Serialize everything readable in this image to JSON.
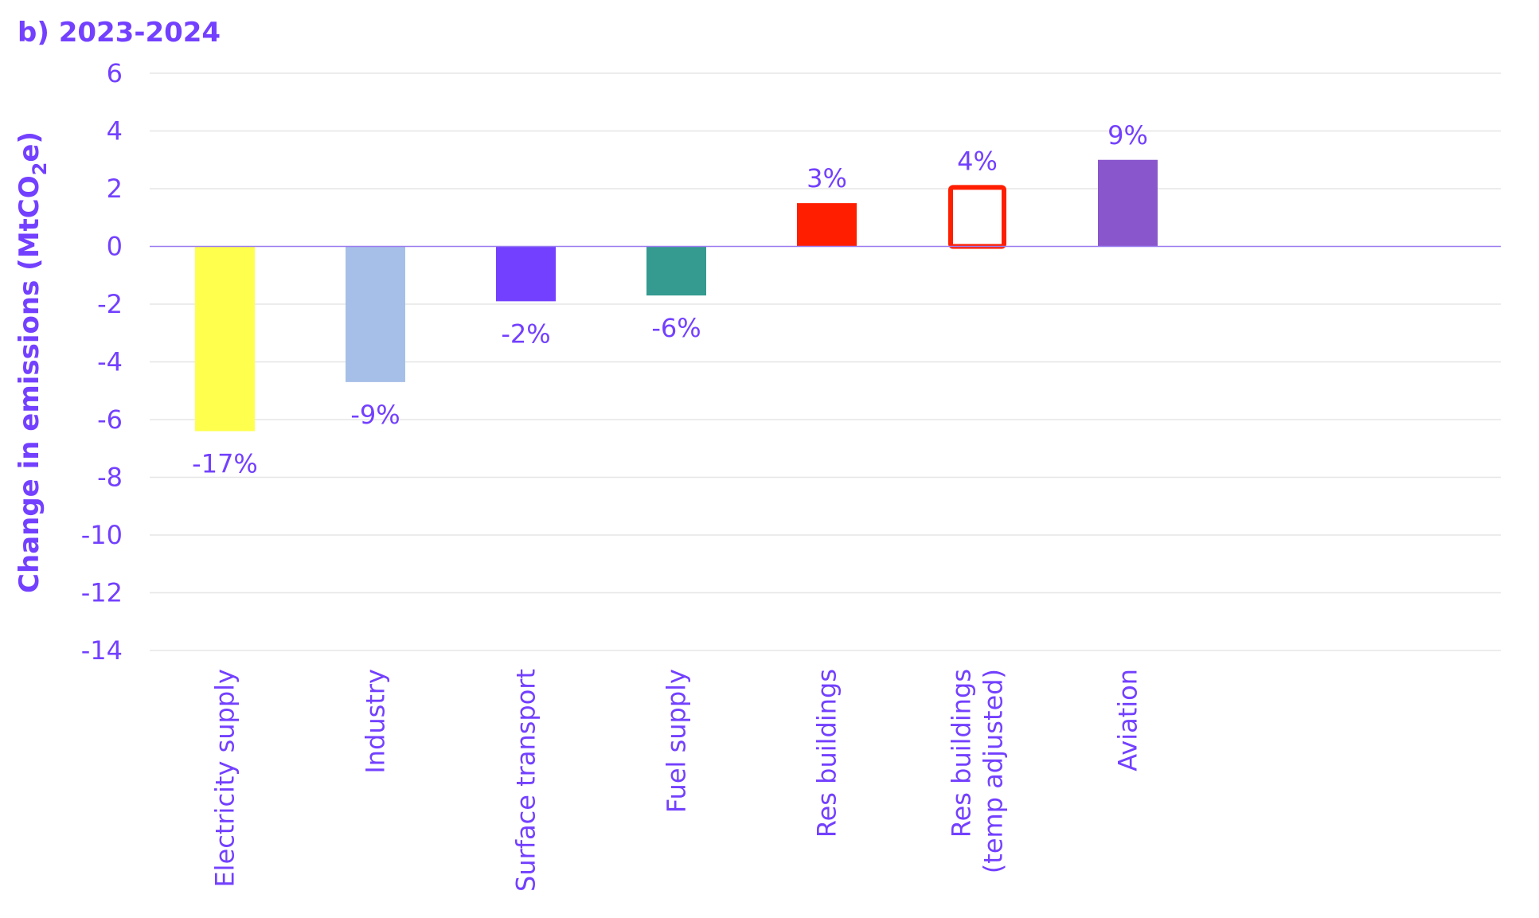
{
  "chart_data": {
    "type": "bar",
    "title": "b) 2023-2024",
    "ylabel": "Change in emissions (MtCO2e)",
    "ylim": [
      -14,
      6
    ],
    "yticks": [
      6,
      4,
      2,
      0,
      -2,
      -4,
      -6,
      -8,
      -10,
      -12,
      -14
    ],
    "grid": true,
    "categories": [
      "Electricity supply",
      "Industry",
      "Surface transport",
      "Fuel supply",
      "Res buildings",
      "Res buildings (temp adjusted)",
      "Aviation"
    ],
    "category_lines": [
      [
        "Electricity supply"
      ],
      [
        "Industry"
      ],
      [
        "Surface transport"
      ],
      [
        "Fuel supply"
      ],
      [
        "Res buildings"
      ],
      [
        "Res buildings",
        "(temp adjusted)"
      ],
      [
        "Aviation"
      ]
    ],
    "values": [
      -6.4,
      -4.7,
      -1.9,
      -1.7,
      1.5,
      2.1,
      3.0
    ],
    "data_labels": [
      "-17%",
      "-9%",
      "-2%",
      "-6%",
      "3%",
      "4%",
      "9%"
    ],
    "styles": [
      "solid",
      "solid",
      "solid",
      "solid",
      "solid",
      "outline",
      "solid"
    ],
    "colors": [
      "#FFFF4D",
      "#A6BFE8",
      "#7340FF",
      "#359A90",
      "#FF1E00",
      "#FF1E00",
      "#8A56CC"
    ]
  },
  "theme": {
    "text_color": "#7340FF",
    "grid_color": "#E6E6E6",
    "zero_line_color": "#9A7CF0"
  }
}
